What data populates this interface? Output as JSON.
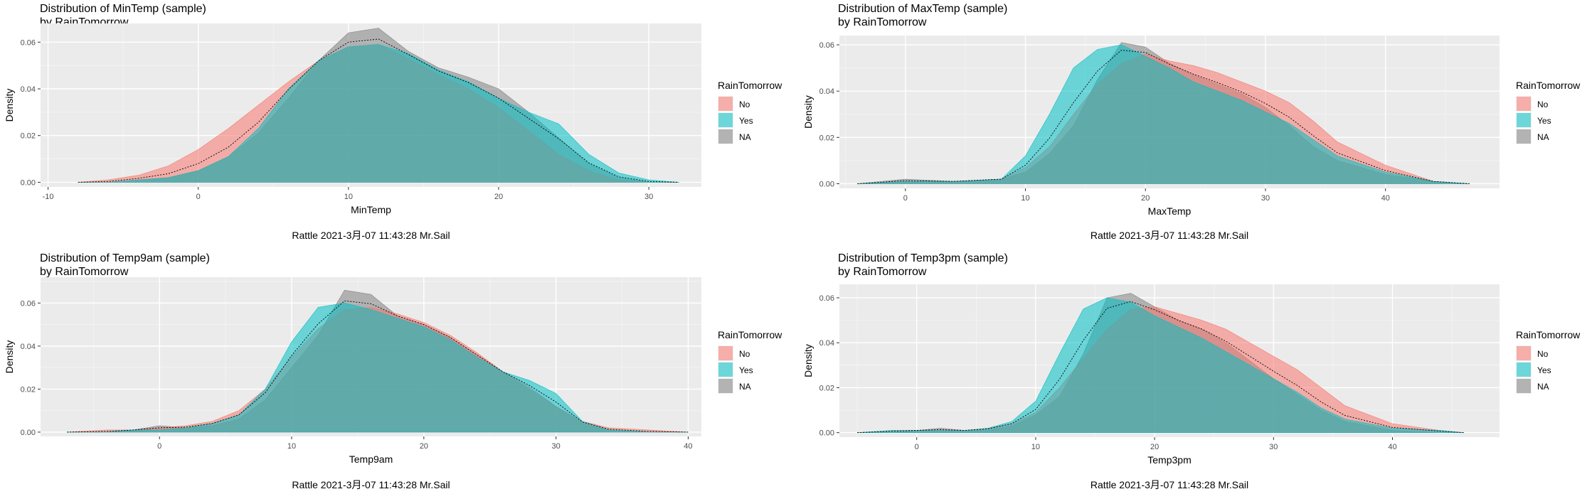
{
  "legend_title": "RainTomorrow",
  "colors": {
    "No": "#F8766D",
    "Yes": "#00BFC4",
    "NA": "#7F7F7F"
  },
  "chart_data": [
    {
      "type": "area",
      "title": "Distribution of MinTemp (sample)",
      "subtitle": "by RainTomorrow",
      "xlabel": "MinTemp",
      "ylabel": "Density",
      "caption": "Rattle 2021-3月-07 11:43:28 Mr.Sail",
      "xlim": [
        -10.5,
        33.5
      ],
      "ylim": [
        -0.002,
        0.068
      ],
      "xticks": [
        -10,
        0,
        10,
        20,
        30
      ],
      "xtick_labels": [
        "-10",
        "0",
        "10",
        "20",
        "30"
      ],
      "yticks": [
        0,
        0.02,
        0.04,
        0.06
      ],
      "ytick_labels": [
        "0.00",
        "0.02",
        "0.04",
        "0.06"
      ],
      "legend": [
        "No",
        "Yes",
        "NA"
      ],
      "series": [
        {
          "name": "No",
          "x": [
            -8,
            -6,
            -4,
            -2,
            0,
            2,
            4,
            6,
            8,
            10,
            12,
            14,
            16,
            18,
            20,
            22,
            24,
            26,
            28,
            30,
            32
          ],
          "y": [
            0,
            0.001,
            0.003,
            0.007,
            0.014,
            0.023,
            0.033,
            0.043,
            0.052,
            0.058,
            0.059,
            0.053,
            0.046,
            0.04,
            0.032,
            0.022,
            0.012,
            0.005,
            0.001,
            0,
            0
          ]
        },
        {
          "name": "Yes",
          "x": [
            -8,
            -6,
            -4,
            -2,
            0,
            2,
            4,
            6,
            8,
            10,
            12,
            14,
            16,
            18,
            20,
            22,
            24,
            26,
            28,
            30,
            32
          ],
          "y": [
            0,
            0,
            0.001,
            0.002,
            0.005,
            0.011,
            0.023,
            0.04,
            0.052,
            0.058,
            0.059,
            0.055,
            0.048,
            0.043,
            0.036,
            0.03,
            0.025,
            0.012,
            0.004,
            0.001,
            0
          ]
        },
        {
          "name": "NA",
          "x": [
            -8,
            -6,
            -4,
            -2,
            0,
            2,
            4,
            6,
            8,
            10,
            12,
            14,
            16,
            18,
            20,
            22,
            24,
            26,
            28,
            30,
            32
          ],
          "y": [
            0,
            0,
            0.001,
            0.002,
            0.005,
            0.011,
            0.021,
            0.036,
            0.052,
            0.064,
            0.066,
            0.056,
            0.049,
            0.045,
            0.04,
            0.03,
            0.019,
            0.008,
            0.002,
            0,
            0
          ]
        }
      ]
    },
    {
      "type": "area",
      "title": "Distribution of MaxTemp (sample)",
      "subtitle": "by RainTomorrow",
      "xlabel": "MaxTemp",
      "ylabel": "Density",
      "caption": "Rattle 2021-3月-07 11:43:28 Mr.Sail",
      "xlim": [
        -5.5,
        49.5
      ],
      "ylim": [
        -0.002,
        0.064
      ],
      "xticks": [
        0,
        10,
        20,
        30,
        40
      ],
      "xtick_labels": [
        "0",
        "10",
        "20",
        "30",
        "40"
      ],
      "yticks": [
        0,
        0.02,
        0.04,
        0.06
      ],
      "ytick_labels": [
        "0.00",
        "0.02",
        "0.04",
        "0.06"
      ],
      "legend": [
        "No",
        "Yes",
        "NA"
      ],
      "series": [
        {
          "name": "No",
          "x": [
            -4,
            0,
            4,
            8,
            10,
            12,
            14,
            16,
            18,
            20,
            22,
            24,
            26,
            28,
            30,
            32,
            34,
            36,
            40,
            44,
            47
          ],
          "y": [
            0,
            0.001,
            0.001,
            0.002,
            0.007,
            0.016,
            0.03,
            0.043,
            0.052,
            0.056,
            0.053,
            0.051,
            0.048,
            0.044,
            0.04,
            0.035,
            0.027,
            0.018,
            0.008,
            0.001,
            0
          ]
        },
        {
          "name": "Yes",
          "x": [
            -4,
            0,
            4,
            8,
            10,
            12,
            14,
            16,
            18,
            20,
            22,
            24,
            26,
            28,
            30,
            32,
            34,
            36,
            40,
            44,
            47
          ],
          "y": [
            0,
            0.001,
            0.001,
            0.002,
            0.012,
            0.03,
            0.05,
            0.058,
            0.06,
            0.055,
            0.05,
            0.044,
            0.04,
            0.036,
            0.031,
            0.026,
            0.019,
            0.012,
            0.005,
            0.001,
            0
          ]
        },
        {
          "name": "NA",
          "x": [
            -4,
            0,
            4,
            8,
            10,
            12,
            14,
            16,
            18,
            20,
            22,
            24,
            26,
            28,
            30,
            32,
            34,
            36,
            40,
            44,
            47
          ],
          "y": [
            0,
            0.002,
            0.001,
            0.002,
            0.005,
            0.013,
            0.025,
            0.045,
            0.061,
            0.059,
            0.052,
            0.047,
            0.043,
            0.039,
            0.033,
            0.025,
            0.016,
            0.01,
            0.004,
            0.001,
            0
          ]
        }
      ]
    },
    {
      "type": "area",
      "title": "Distribution of Temp9am (sample)",
      "subtitle": "by RainTomorrow",
      "xlabel": "Temp9am",
      "ylabel": "Density",
      "caption": "Rattle 2021-3月-07 11:43:28 Mr.Sail",
      "xlim": [
        -9,
        41
      ],
      "ylim": [
        -0.002,
        0.072
      ],
      "xticks": [
        0,
        10,
        20,
        30,
        40
      ],
      "xtick_labels": [
        "0",
        "10",
        "20",
        "30",
        "40"
      ],
      "yticks": [
        0,
        0.02,
        0.04,
        0.06
      ],
      "ytick_labels": [
        "0.00",
        "0.02",
        "0.04",
        "0.06"
      ],
      "legend": [
        "No",
        "Yes",
        "NA"
      ],
      "series": [
        {
          "name": "No",
          "x": [
            -7,
            -4,
            -2,
            0,
            2,
            4,
            6,
            8,
            10,
            12,
            14,
            16,
            18,
            20,
            22,
            24,
            26,
            28,
            30,
            32,
            34,
            37,
            40
          ],
          "y": [
            0,
            0.001,
            0.001,
            0.002,
            0.003,
            0.005,
            0.01,
            0.02,
            0.035,
            0.048,
            0.057,
            0.058,
            0.055,
            0.051,
            0.045,
            0.037,
            0.028,
            0.021,
            0.012,
            0.005,
            0.002,
            0.001,
            0
          ]
        },
        {
          "name": "Yes",
          "x": [
            -7,
            -4,
            -2,
            0,
            2,
            4,
            6,
            8,
            10,
            12,
            14,
            16,
            18,
            20,
            22,
            24,
            26,
            28,
            30,
            32,
            34,
            37,
            40
          ],
          "y": [
            0,
            0,
            0.001,
            0.001,
            0.002,
            0.004,
            0.008,
            0.02,
            0.042,
            0.058,
            0.06,
            0.057,
            0.053,
            0.049,
            0.043,
            0.035,
            0.028,
            0.024,
            0.018,
            0.005,
            0.001,
            0,
            0
          ]
        },
        {
          "name": "NA",
          "x": [
            -7,
            -4,
            -2,
            0,
            2,
            4,
            6,
            8,
            10,
            12,
            14,
            16,
            18,
            20,
            22,
            24,
            26,
            28,
            30,
            32,
            34,
            37,
            40
          ],
          "y": [
            0,
            0,
            0.001,
            0.003,
            0.002,
            0.003,
            0.006,
            0.015,
            0.03,
            0.045,
            0.066,
            0.064,
            0.054,
            0.05,
            0.044,
            0.036,
            0.028,
            0.02,
            0.012,
            0.004,
            0.001,
            0,
            0
          ]
        }
      ]
    },
    {
      "type": "area",
      "title": "Distribution of Temp3pm (sample)",
      "subtitle": "by RainTomorrow",
      "xlabel": "Temp3pm",
      "ylabel": "Density",
      "caption": "Rattle 2021-3月-07 11:43:28 Mr.Sail",
      "xlim": [
        -6.5,
        49
      ],
      "ylim": [
        -0.002,
        0.066
      ],
      "xticks": [
        0,
        10,
        20,
        30,
        40
      ],
      "xtick_labels": [
        "0",
        "10",
        "20",
        "30",
        "40"
      ],
      "yticks": [
        0,
        0.02,
        0.04,
        0.06
      ],
      "ytick_labels": [
        "0.00",
        "0.02",
        "0.04",
        "0.06"
      ],
      "legend": [
        "No",
        "Yes",
        "NA"
      ],
      "series": [
        {
          "name": "No",
          "x": [
            -5,
            -2,
            0,
            2,
            4,
            6,
            8,
            10,
            12,
            14,
            16,
            18,
            20,
            22,
            24,
            26,
            28,
            30,
            32,
            34,
            36,
            40,
            44,
            46
          ],
          "y": [
            0,
            0.001,
            0.001,
            0.001,
            0.001,
            0.002,
            0.004,
            0.009,
            0.02,
            0.033,
            0.046,
            0.055,
            0.056,
            0.053,
            0.05,
            0.046,
            0.04,
            0.034,
            0.028,
            0.02,
            0.012,
            0.004,
            0.001,
            0
          ]
        },
        {
          "name": "Yes",
          "x": [
            -5,
            -2,
            0,
            2,
            4,
            6,
            8,
            10,
            12,
            14,
            16,
            18,
            20,
            22,
            24,
            26,
            28,
            30,
            32,
            34,
            36,
            40,
            44,
            46
          ],
          "y": [
            0,
            0.001,
            0.001,
            0.001,
            0.001,
            0.002,
            0.005,
            0.014,
            0.035,
            0.055,
            0.06,
            0.058,
            0.052,
            0.047,
            0.042,
            0.036,
            0.03,
            0.024,
            0.018,
            0.011,
            0.006,
            0.002,
            0.001,
            0
          ]
        },
        {
          "name": "NA",
          "x": [
            -5,
            -2,
            0,
            2,
            4,
            6,
            8,
            10,
            12,
            14,
            16,
            18,
            20,
            22,
            24,
            26,
            28,
            30,
            32,
            34,
            36,
            40,
            44,
            46
          ],
          "y": [
            0,
            0,
            0.001,
            0.002,
            0.001,
            0.001,
            0.003,
            0.008,
            0.016,
            0.035,
            0.06,
            0.062,
            0.056,
            0.05,
            0.046,
            0.04,
            0.032,
            0.024,
            0.017,
            0.01,
            0.005,
            0.001,
            0,
            0
          ]
        }
      ]
    }
  ]
}
